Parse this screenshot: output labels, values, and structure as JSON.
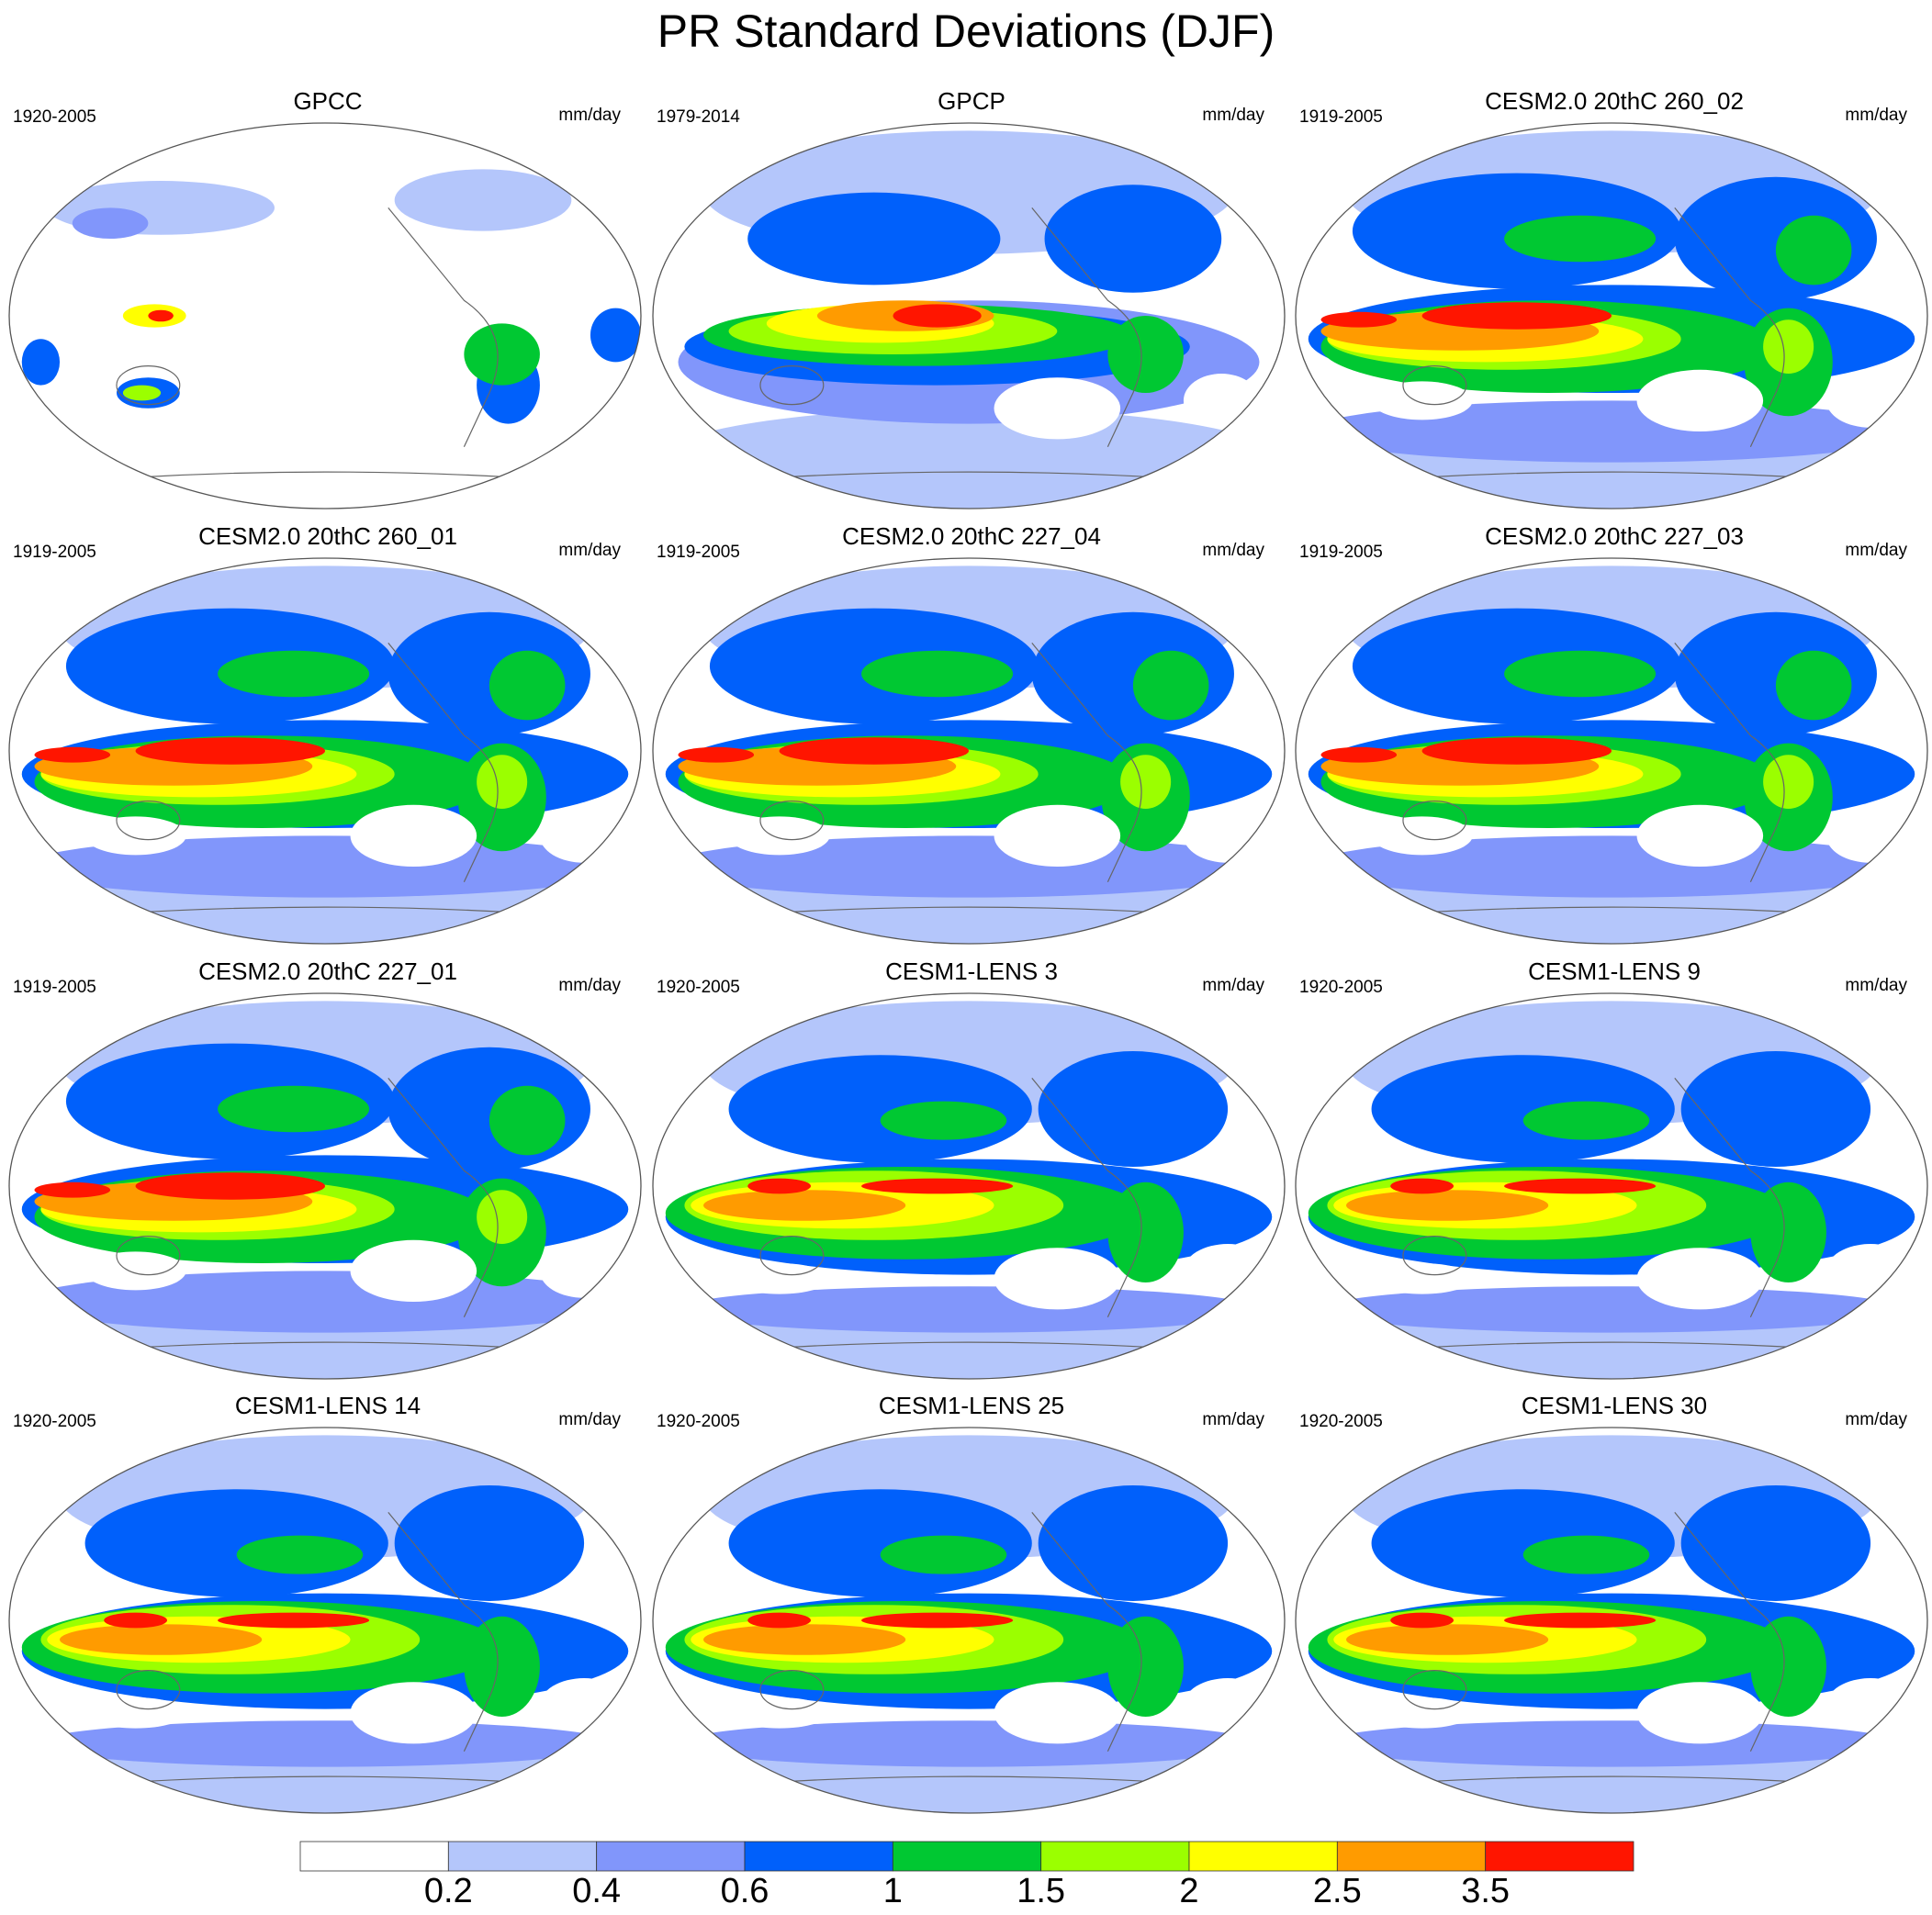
{
  "title": "PR Standard Deviations (DJF)",
  "panels": [
    {
      "title": "GPCC",
      "period": "1920-2005",
      "units": "mm/day",
      "variant": "gpcc"
    },
    {
      "title": "GPCP",
      "period": "1979-2014",
      "units": "mm/day",
      "variant": "obs"
    },
    {
      "title": "CESM2.0 20thC 260_02",
      "period": "1919-2005",
      "units": "mm/day",
      "variant": "cesm2"
    },
    {
      "title": "CESM2.0 20thC 260_01",
      "period": "1919-2005",
      "units": "mm/day",
      "variant": "cesm2"
    },
    {
      "title": "CESM2.0 20thC 227_04",
      "period": "1919-2005",
      "units": "mm/day",
      "variant": "cesm2"
    },
    {
      "title": "CESM2.0 20thC 227_03",
      "period": "1919-2005",
      "units": "mm/day",
      "variant": "cesm2"
    },
    {
      "title": "CESM2.0 20thC 227_01",
      "period": "1919-2005",
      "units": "mm/day",
      "variant": "cesm2"
    },
    {
      "title": "CESM1-LENS 3",
      "period": "1920-2005",
      "units": "mm/day",
      "variant": "cesm1"
    },
    {
      "title": "CESM1-LENS 9",
      "period": "1920-2005",
      "units": "mm/day",
      "variant": "cesm1"
    },
    {
      "title": "CESM1-LENS 14",
      "period": "1920-2005",
      "units": "mm/day",
      "variant": "cesm1"
    },
    {
      "title": "CESM1-LENS 25",
      "period": "1920-2005",
      "units": "mm/day",
      "variant": "cesm1"
    },
    {
      "title": "CESM1-LENS 30",
      "period": "1920-2005",
      "units": "mm/day",
      "variant": "cesm1"
    }
  ],
  "colorbar": {
    "colors": [
      "#ffffff",
      "#b4c6fb",
      "#8196fb",
      "#0060fb",
      "#00c832",
      "#9bff00",
      "#ffff00",
      "#ff9b00",
      "#ff1500"
    ],
    "labels": [
      "0.2",
      "0.4",
      "0.6",
      "1",
      "1.5",
      "2",
      "2.5",
      "3.5"
    ]
  }
}
